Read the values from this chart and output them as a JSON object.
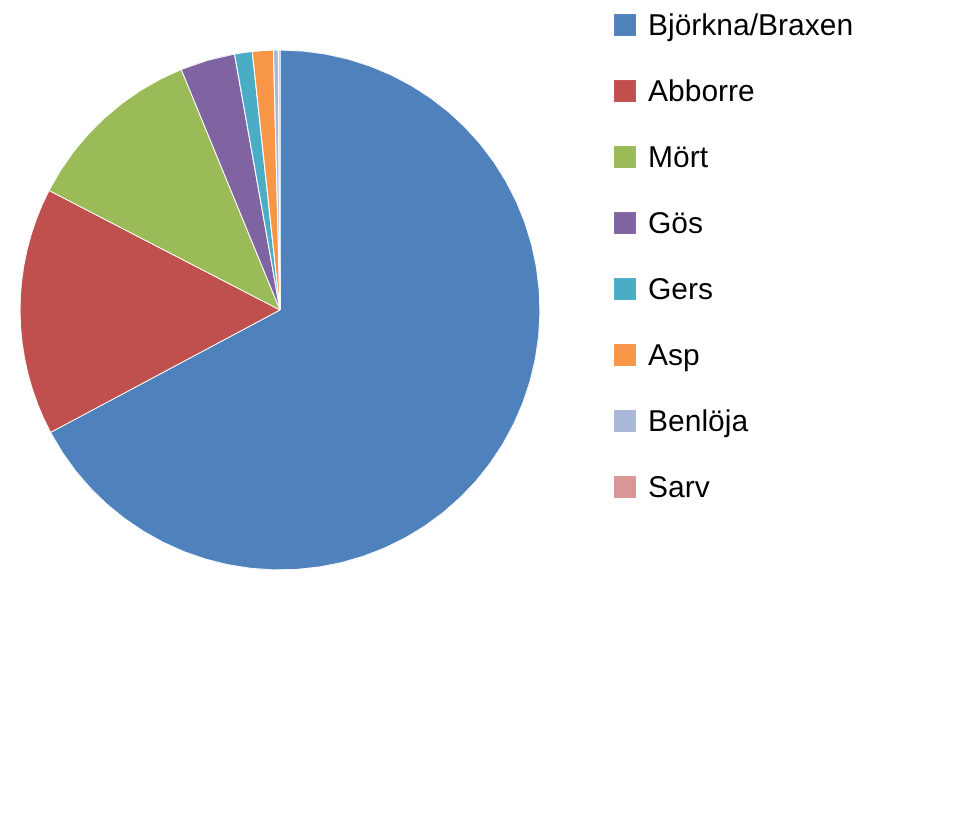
{
  "chart_data": {
    "type": "pie",
    "categories": [
      "Björkna/Braxen",
      "Abborre",
      "Mört",
      "Gös",
      "Gers",
      "Asp",
      "Benlöja",
      "Sarv"
    ],
    "values": [
      67.2,
      15.4,
      11.2,
      3.4,
      1.1,
      1.3,
      0.3,
      0.1
    ],
    "colors": [
      "#4f81bd",
      "#c0504d",
      "#9bbb59",
      "#8064a2",
      "#4bacc6",
      "#f79646",
      "#a9b8d8",
      "#d99694"
    ],
    "legend": "right"
  }
}
